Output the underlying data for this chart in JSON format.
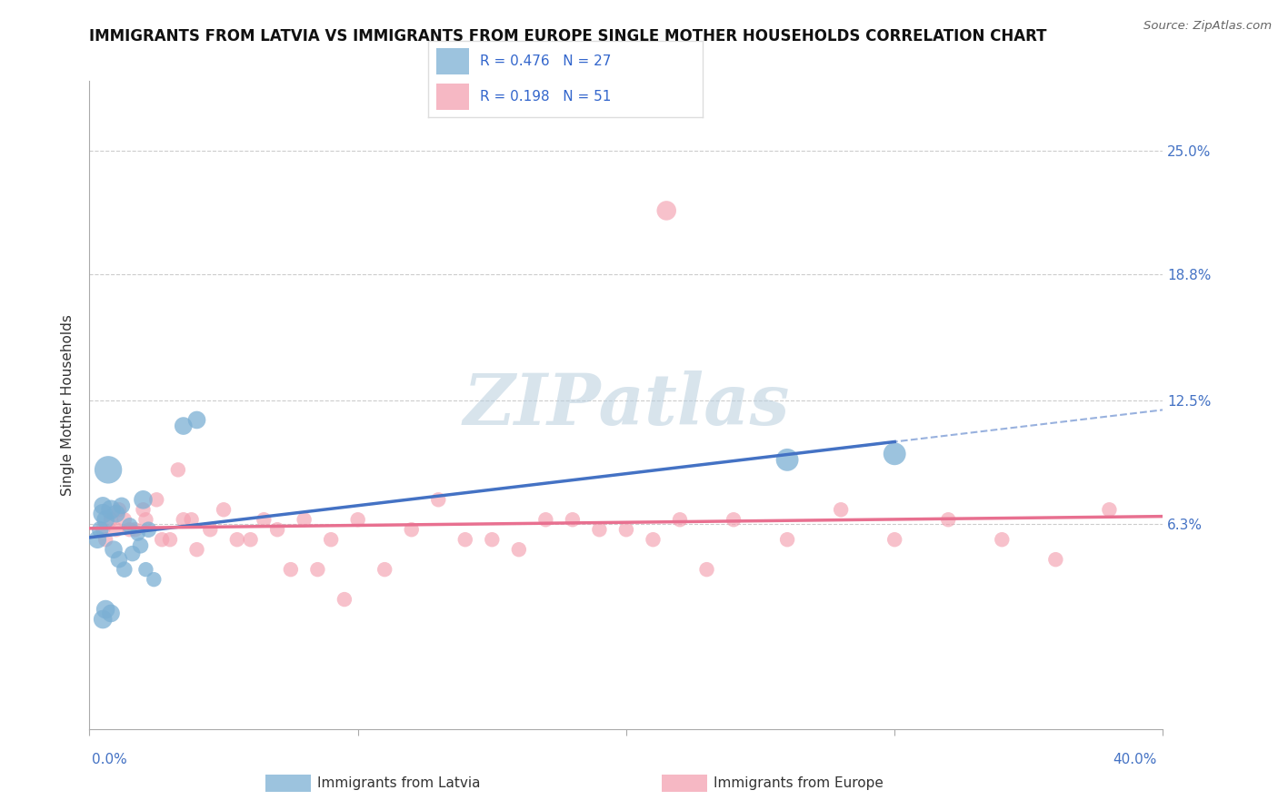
{
  "title": "IMMIGRANTS FROM LATVIA VS IMMIGRANTS FROM EUROPE SINGLE MOTHER HOUSEHOLDS CORRELATION CHART",
  "source": "Source: ZipAtlas.com",
  "ylabel": "Single Mother Households",
  "ytick_labels": [
    "",
    "6.3%",
    "12.5%",
    "18.8%",
    "25.0%"
  ],
  "ytick_values": [
    0,
    0.063,
    0.125,
    0.188,
    0.25
  ],
  "xlim": [
    0.0,
    0.4
  ],
  "ylim": [
    -0.04,
    0.285
  ],
  "legend_r_latvia": "R = 0.476",
  "legend_n_latvia": "N = 27",
  "legend_r_europe": "R = 0.198",
  "legend_n_europe": "N = 51",
  "legend_label_latvia": "Immigrants from Latvia",
  "legend_label_europe": "Immigrants from Europe",
  "blue_color": "#7BAFD4",
  "pink_color": "#F4A0B0",
  "blue_line_color": "#4472C4",
  "pink_line_color": "#E87090",
  "watermark": "ZIPatlas",
  "grid_color": "#CCCCCC",
  "blue_scatter": {
    "x": [
      0.003,
      0.004,
      0.005,
      0.005,
      0.005,
      0.006,
      0.006,
      0.007,
      0.008,
      0.008,
      0.009,
      0.01,
      0.011,
      0.012,
      0.013,
      0.015,
      0.016,
      0.018,
      0.019,
      0.02,
      0.021,
      0.022,
      0.024,
      0.035,
      0.04,
      0.26,
      0.3
    ],
    "y": [
      0.055,
      0.06,
      0.068,
      0.072,
      0.015,
      0.065,
      0.02,
      0.09,
      0.07,
      0.018,
      0.05,
      0.068,
      0.045,
      0.072,
      0.04,
      0.062,
      0.048,
      0.058,
      0.052,
      0.075,
      0.04,
      0.06,
      0.035,
      0.112,
      0.115,
      0.095,
      0.098
    ],
    "size": [
      50,
      45,
      60,
      50,
      55,
      50,
      55,
      120,
      60,
      50,
      50,
      50,
      45,
      45,
      40,
      40,
      40,
      35,
      40,
      55,
      35,
      40,
      35,
      50,
      50,
      80,
      80
    ]
  },
  "pink_scatter": {
    "x": [
      0.005,
      0.006,
      0.008,
      0.01,
      0.011,
      0.013,
      0.015,
      0.017,
      0.02,
      0.021,
      0.025,
      0.027,
      0.03,
      0.033,
      0.035,
      0.038,
      0.04,
      0.045,
      0.05,
      0.055,
      0.06,
      0.065,
      0.07,
      0.075,
      0.08,
      0.085,
      0.09,
      0.095,
      0.1,
      0.11,
      0.12,
      0.13,
      0.14,
      0.15,
      0.16,
      0.17,
      0.18,
      0.19,
      0.2,
      0.21,
      0.22,
      0.23,
      0.24,
      0.26,
      0.28,
      0.3,
      0.32,
      0.34,
      0.36,
      0.38,
      0.215
    ],
    "y": [
      0.06,
      0.055,
      0.065,
      0.06,
      0.07,
      0.065,
      0.06,
      0.06,
      0.07,
      0.065,
      0.075,
      0.055,
      0.055,
      0.09,
      0.065,
      0.065,
      0.05,
      0.06,
      0.07,
      0.055,
      0.055,
      0.065,
      0.06,
      0.04,
      0.065,
      0.04,
      0.055,
      0.025,
      0.065,
      0.04,
      0.06,
      0.075,
      0.055,
      0.055,
      0.05,
      0.065,
      0.065,
      0.06,
      0.06,
      0.055,
      0.065,
      0.04,
      0.065,
      0.055,
      0.07,
      0.055,
      0.065,
      0.055,
      0.045,
      0.07,
      0.22
    ],
    "size": [
      35,
      35,
      35,
      35,
      35,
      35,
      35,
      35,
      35,
      35,
      35,
      35,
      35,
      35,
      35,
      35,
      35,
      35,
      35,
      35,
      35,
      35,
      35,
      35,
      35,
      35,
      35,
      35,
      35,
      35,
      35,
      35,
      35,
      35,
      35,
      35,
      35,
      35,
      35,
      35,
      35,
      35,
      35,
      35,
      35,
      35,
      35,
      35,
      35,
      35,
      60
    ]
  }
}
